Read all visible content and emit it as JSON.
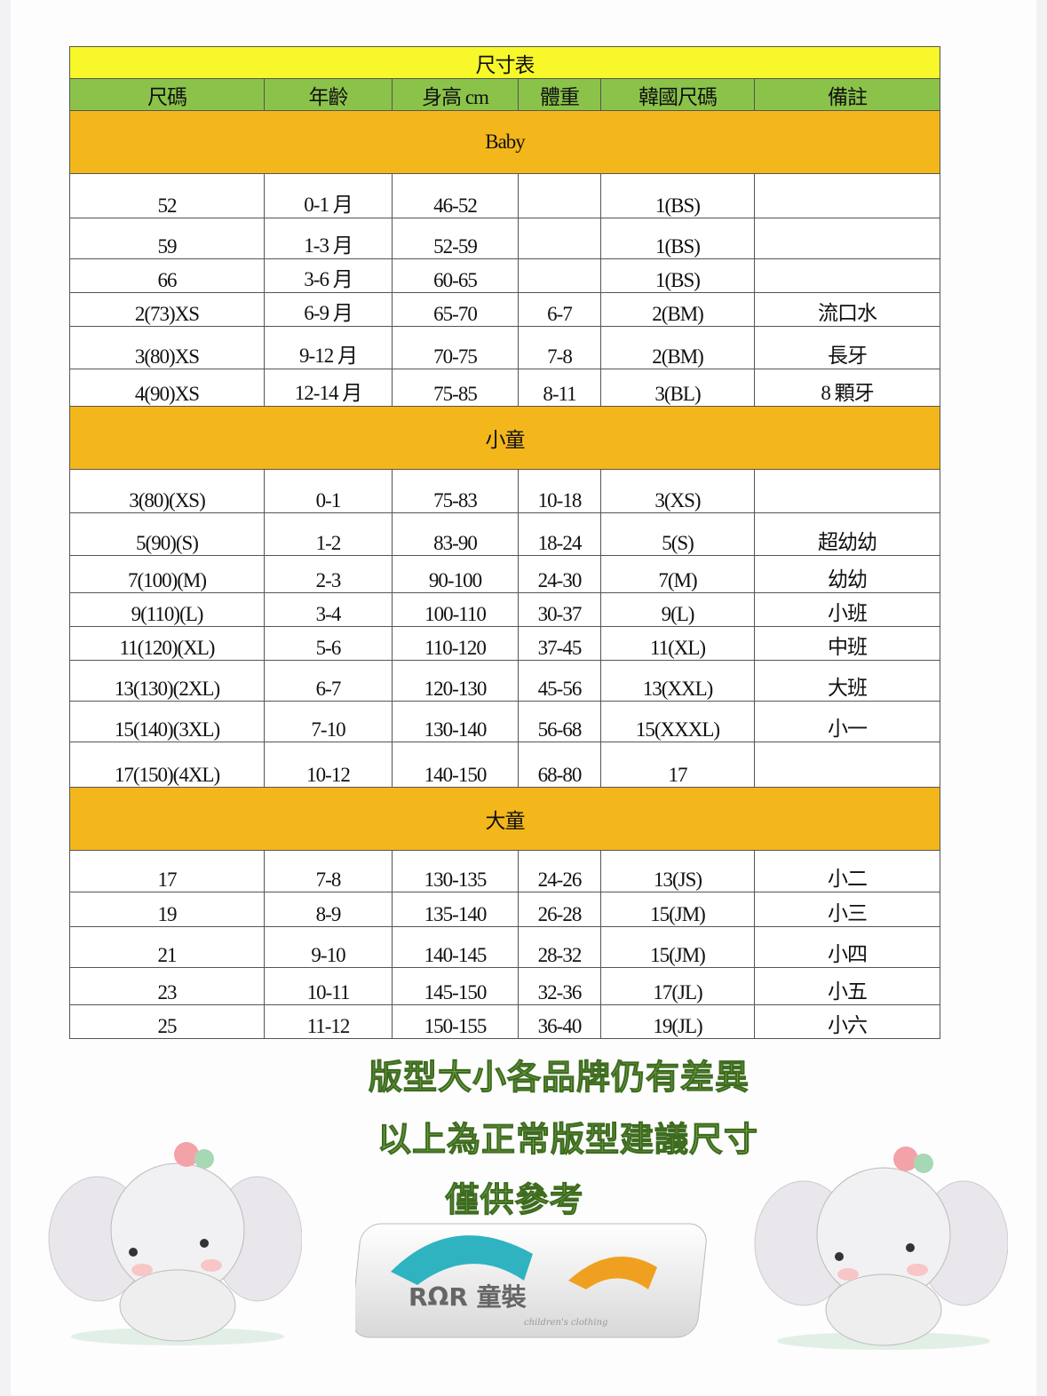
{
  "table": {
    "title": "尺寸表",
    "headers": [
      "尺碼",
      "年齡",
      "身高 cm",
      "體重",
      "韓國尺碼",
      "備註"
    ],
    "sections": [
      {
        "name": "Baby",
        "rows": [
          [
            "52",
            "0-1 月",
            "46-52",
            "",
            "1(BS)",
            ""
          ],
          [
            "59",
            "1-3 月",
            "52-59",
            "",
            "1(BS)",
            ""
          ],
          [
            "66",
            "3-6 月",
            "60-65",
            "",
            "1(BS)",
            ""
          ],
          [
            "2(73)XS",
            "6-9 月",
            "65-70",
            "6-7",
            "2(BM)",
            "流口水"
          ],
          [
            "3(80)XS",
            "9-12 月",
            "70-75",
            "7-8",
            "2(BM)",
            "長牙"
          ],
          [
            "4(90)XS",
            "12-14 月",
            "75-85",
            "8-11",
            "3(BL)",
            "8 顆牙"
          ]
        ]
      },
      {
        "name": "小童",
        "rows": [
          [
            "3(80)(XS)",
            "0-1",
            "75-83",
            "10-18",
            "3(XS)",
            ""
          ],
          [
            "5(90)(S)",
            "1-2",
            "83-90",
            "18-24",
            "5(S)",
            "超幼幼"
          ],
          [
            "7(100)(M)",
            "2-3",
            "90-100",
            "24-30",
            "7(M)",
            "幼幼"
          ],
          [
            "9(110)(L)",
            "3-4",
            "100-110",
            "30-37",
            "9(L)",
            "小班"
          ],
          [
            "11(120)(XL)",
            "5-6",
            "110-120",
            "37-45",
            "11(XL)",
            "中班"
          ],
          [
            "13(130)(2XL)",
            "6-7",
            "120-130",
            "45-56",
            "13(XXL)",
            "大班"
          ],
          [
            "15(140)(3XL)",
            "7-10",
            "130-140",
            "56-68",
            "15(XXXL)",
            "小一"
          ],
          [
            "17(150)(4XL)",
            "10-12",
            "140-150",
            "68-80",
            "17",
            ""
          ]
        ]
      },
      {
        "name": "大童",
        "rows": [
          [
            "17",
            "7-8",
            "130-135",
            "24-26",
            "13(JS)",
            "小二"
          ],
          [
            "19",
            "8-9",
            "135-140",
            "26-28",
            "15(JM)",
            "小三"
          ],
          [
            "21",
            "9-10",
            "140-145",
            "28-32",
            "15(JM)",
            "小四"
          ],
          [
            "23",
            "10-11",
            "145-150",
            "32-36",
            "17(JL)",
            "小五"
          ],
          [
            "25",
            "11-12",
            "150-155",
            "36-40",
            "19(JL)",
            "小六"
          ]
        ]
      }
    ]
  },
  "notes": [
    "版型大小各品牌仍有差異",
    "以上為正常版型建議尺寸",
    "僅供參考"
  ],
  "logo": {
    "text": "RΩR 童裝",
    "sub": "children's clothing"
  },
  "colors": {
    "title_bg": "#f7f72a",
    "header_bg": "#8bc34a",
    "section_bg": "#f4b71b",
    "note_text": "#7cae4a"
  }
}
